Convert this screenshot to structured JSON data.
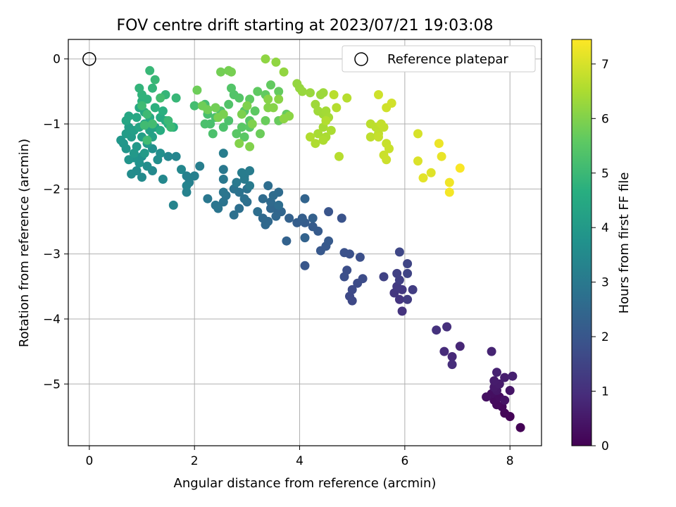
{
  "chart_data": {
    "type": "scatter",
    "title": "FOV centre drift starting at 2023/07/21 19:03:08",
    "xlabel": "Angular distance from reference (arcmin)",
    "ylabel": "Rotation from reference (arcmin)",
    "xlim": [
      -0.4,
      8.6
    ],
    "ylim": [
      -5.95,
      0.3
    ],
    "xticks": [
      0,
      2,
      4,
      6,
      8
    ],
    "yticks": [
      0,
      -1,
      -2,
      -3,
      -4,
      -5
    ],
    "xtick_labels": [
      "0",
      "2",
      "4",
      "6",
      "8"
    ],
    "ytick_labels": [
      "0",
      "−1",
      "−2",
      "−3",
      "−4",
      "−5"
    ],
    "grid": true,
    "legend": {
      "position": "top-right",
      "entries": [
        "Reference platepar"
      ]
    },
    "reference_point": {
      "x": 0,
      "y": 0
    },
    "colorbar": {
      "label": "Hours from first FF file",
      "range": [
        0,
        7.45
      ],
      "ticks": [
        0,
        1,
        2,
        3,
        4,
        5,
        6,
        7
      ],
      "tick_labels": [
        "0",
        "1",
        "2",
        "3",
        "4",
        "5",
        "6",
        "7"
      ],
      "colormap": "viridis"
    },
    "points": [
      [
        8.2,
        -5.67,
        0.02
      ],
      [
        8.0,
        -5.5,
        0.06
      ],
      [
        7.9,
        -5.45,
        0.1
      ],
      [
        7.85,
        -5.35,
        0.14
      ],
      [
        7.75,
        -5.32,
        0.18
      ],
      [
        7.7,
        -5.25,
        0.22
      ],
      [
        7.8,
        -5.2,
        0.26
      ],
      [
        7.65,
        -5.15,
        0.3
      ],
      [
        7.55,
        -5.2,
        0.34
      ],
      [
        7.9,
        -5.25,
        0.38
      ],
      [
        8.0,
        -5.1,
        0.42
      ],
      [
        7.75,
        -5.1,
        0.46
      ],
      [
        7.7,
        -5.05,
        0.5
      ],
      [
        7.8,
        -5.0,
        0.54
      ],
      [
        7.7,
        -4.95,
        0.58
      ],
      [
        7.9,
        -4.9,
        0.62
      ],
      [
        8.05,
        -4.88,
        0.66
      ],
      [
        7.75,
        -4.82,
        0.7
      ],
      [
        7.65,
        -4.5,
        0.74
      ],
      [
        7.05,
        -4.42,
        0.8
      ],
      [
        6.9,
        -4.58,
        0.85
      ],
      [
        6.75,
        -4.5,
        0.9
      ],
      [
        6.9,
        -4.7,
        0.95
      ],
      [
        6.8,
        -4.12,
        1.0
      ],
      [
        6.6,
        -4.17,
        1.05
      ],
      [
        5.95,
        -3.88,
        1.1
      ],
      [
        5.9,
        -3.7,
        1.14
      ],
      [
        5.8,
        -3.6,
        1.18
      ],
      [
        5.95,
        -3.55,
        1.22
      ],
      [
        5.85,
        -3.5,
        1.26
      ],
      [
        6.05,
        -3.7,
        1.3
      ],
      [
        6.15,
        -3.55,
        1.34
      ],
      [
        5.9,
        -3.4,
        1.38
      ],
      [
        5.85,
        -3.3,
        1.42
      ],
      [
        5.6,
        -3.35,
        1.46
      ],
      [
        6.05,
        -3.3,
        1.5
      ],
      [
        6.05,
        -3.15,
        1.54
      ],
      [
        5.9,
        -2.97,
        1.58
      ],
      [
        5.0,
        -3.72,
        1.6
      ],
      [
        4.95,
        -3.65,
        1.63
      ],
      [
        5.0,
        -3.55,
        1.66
      ],
      [
        5.1,
        -3.45,
        1.69
      ],
      [
        5.2,
        -3.38,
        1.72
      ],
      [
        4.9,
        -3.25,
        1.75
      ],
      [
        4.85,
        -3.35,
        1.78
      ],
      [
        5.15,
        -3.05,
        1.8
      ],
      [
        4.95,
        -3.0,
        1.83
      ],
      [
        4.85,
        -2.98,
        1.86
      ],
      [
        4.8,
        -2.45,
        1.9
      ],
      [
        4.55,
        -2.35,
        1.95
      ],
      [
        4.1,
        -3.18,
        2.0
      ],
      [
        4.4,
        -2.95,
        2.03
      ],
      [
        4.5,
        -2.88,
        2.06
      ],
      [
        4.55,
        -2.8,
        2.09
      ],
      [
        4.35,
        -2.65,
        2.12
      ],
      [
        4.25,
        -2.58,
        2.15
      ],
      [
        4.1,
        -2.52,
        2.18
      ],
      [
        3.95,
        -2.52,
        2.21
      ],
      [
        4.05,
        -2.45,
        2.24
      ],
      [
        4.25,
        -2.45,
        2.27
      ],
      [
        3.8,
        -2.45,
        2.3
      ],
      [
        3.75,
        -2.8,
        2.33
      ],
      [
        4.1,
        -2.75,
        2.36
      ],
      [
        4.1,
        -2.15,
        2.4
      ],
      [
        3.65,
        -2.35,
        2.42
      ],
      [
        3.55,
        -2.3,
        2.44
      ],
      [
        3.45,
        -2.3,
        2.46
      ],
      [
        3.55,
        -2.42,
        2.48
      ],
      [
        3.4,
        -2.5,
        2.5
      ],
      [
        3.35,
        -2.55,
        2.52
      ],
      [
        3.3,
        -2.45,
        2.54
      ],
      [
        3.45,
        -2.2,
        2.56
      ],
      [
        3.3,
        -2.15,
        2.58
      ],
      [
        3.6,
        -2.05,
        2.6
      ],
      [
        3.5,
        -2.1,
        2.62
      ],
      [
        3.4,
        -1.95,
        2.64
      ],
      [
        3.6,
        -2.25,
        2.66
      ],
      [
        3.2,
        -2.35,
        2.68
      ],
      [
        3.0,
        -2.2,
        2.7
      ],
      [
        2.85,
        -2.3,
        2.72
      ],
      [
        2.75,
        -2.4,
        2.74
      ],
      [
        2.95,
        -2.15,
        2.76
      ],
      [
        3.0,
        -2.0,
        2.78
      ],
      [
        2.85,
        -2.05,
        2.8
      ],
      [
        2.75,
        -2.0,
        2.82
      ],
      [
        2.6,
        -2.1,
        2.84
      ],
      [
        2.55,
        -2.2,
        2.86
      ],
      [
        2.45,
        -2.3,
        2.88
      ],
      [
        2.55,
        -2.05,
        2.9
      ],
      [
        2.4,
        -2.25,
        2.92
      ],
      [
        2.25,
        -2.15,
        2.94
      ],
      [
        2.55,
        -1.85,
        2.96
      ],
      [
        2.55,
        -1.7,
        2.98
      ],
      [
        2.8,
        -1.9,
        3.0
      ],
      [
        2.95,
        -1.8,
        3.02
      ],
      [
        3.05,
        -1.95,
        3.04
      ],
      [
        2.95,
        -1.85,
        3.06
      ],
      [
        3.05,
        -1.72,
        3.08
      ],
      [
        2.9,
        -1.75,
        3.1
      ],
      [
        2.55,
        -1.45,
        3.12
      ],
      [
        2.1,
        -1.65,
        3.15
      ],
      [
        2.0,
        -1.8,
        3.18
      ],
      [
        1.9,
        -1.9,
        3.21
      ],
      [
        1.85,
        -1.8,
        3.24
      ],
      [
        1.85,
        -2.05,
        3.27
      ],
      [
        1.85,
        -1.95,
        3.3
      ],
      [
        1.6,
        -2.25,
        3.33
      ],
      [
        1.65,
        -1.5,
        3.36
      ],
      [
        1.5,
        -1.5,
        3.4
      ],
      [
        1.75,
        -1.7,
        3.43
      ],
      [
        1.4,
        -1.85,
        3.46
      ],
      [
        1.2,
        -1.72,
        3.49
      ],
      [
        1.0,
        -1.82,
        3.52
      ],
      [
        0.9,
        -1.72,
        3.55
      ],
      [
        0.8,
        -1.77,
        3.58
      ],
      [
        1.1,
        -1.65,
        3.61
      ],
      [
        1.3,
        -1.55,
        3.64
      ],
      [
        1.35,
        -1.45,
        3.67
      ],
      [
        1.2,
        -1.38,
        3.7
      ],
      [
        1.0,
        -1.5,
        3.73
      ],
      [
        0.95,
        -1.6,
        3.76
      ],
      [
        0.85,
        -1.52,
        3.79
      ],
      [
        0.75,
        -1.55,
        3.82
      ],
      [
        0.7,
        -1.38,
        3.85
      ],
      [
        0.65,
        -1.3,
        3.88
      ],
      [
        0.6,
        -1.25,
        3.91
      ],
      [
        0.85,
        -1.45,
        3.94
      ],
      [
        0.9,
        -1.35,
        3.97
      ],
      [
        1.05,
        -1.45,
        4.0
      ],
      [
        1.1,
        -1.3,
        4.03
      ],
      [
        0.8,
        -1.2,
        4.06
      ],
      [
        0.7,
        -1.15,
        4.09
      ],
      [
        0.75,
        -1.05,
        4.12
      ],
      [
        0.85,
        -1.1,
        4.15
      ],
      [
        1.0,
        -1.2,
        4.18
      ],
      [
        1.15,
        -1.1,
        4.21
      ],
      [
        1.2,
        -1.2,
        4.24
      ],
      [
        1.25,
        -1.05,
        4.27
      ],
      [
        1.05,
        -1.0,
        4.3
      ],
      [
        0.95,
        -1.05,
        4.33
      ],
      [
        0.7,
        -0.95,
        4.36
      ],
      [
        0.75,
        -0.88,
        4.39
      ],
      [
        0.9,
        -0.9,
        4.42
      ],
      [
        0.95,
        -0.75,
        4.45
      ],
      [
        1.05,
        -0.82,
        4.48
      ],
      [
        1.15,
        -0.9,
        4.51
      ],
      [
        1.35,
        -0.9,
        4.54
      ],
      [
        1.45,
        -0.95,
        4.57
      ],
      [
        1.35,
        -1.1,
        4.6
      ],
      [
        1.5,
        -1.0,
        4.63
      ],
      [
        1.6,
        -1.05,
        4.66
      ],
      [
        1.4,
        -0.8,
        4.69
      ],
      [
        1.25,
        -0.75,
        4.72
      ],
      [
        1.0,
        -0.65,
        4.75
      ],
      [
        1.1,
        -0.62,
        4.78
      ],
      [
        1.0,
        -0.55,
        4.81
      ],
      [
        0.95,
        -0.45,
        4.84
      ],
      [
        1.2,
        -0.45,
        4.87
      ],
      [
        1.45,
        -0.55,
        4.9
      ],
      [
        1.65,
        -0.6,
        4.93
      ],
      [
        1.15,
        -0.18,
        4.95
      ],
      [
        1.25,
        -0.32,
        4.97
      ],
      [
        1.5,
        -0.95,
        5.0
      ],
      [
        1.55,
        -1.05,
        5.02
      ],
      [
        1.1,
        -0.85,
        5.04
      ],
      [
        1.0,
        -0.72,
        5.06
      ],
      [
        1.05,
        -1.02,
        5.08
      ],
      [
        1.1,
        -1.25,
        5.1
      ],
      [
        1.2,
        -1.0,
        5.12
      ],
      [
        1.35,
        -0.6,
        5.14
      ],
      [
        2.0,
        -0.72,
        5.16
      ],
      [
        2.2,
        -0.7,
        5.18
      ],
      [
        2.25,
        -0.85,
        5.2
      ],
      [
        2.4,
        -0.9,
        5.22
      ],
      [
        2.3,
        -1.0,
        5.24
      ],
      [
        2.2,
        -1.0,
        5.26
      ],
      [
        2.35,
        -1.15,
        5.28
      ],
      [
        2.55,
        -1.05,
        5.3
      ],
      [
        2.65,
        -0.95,
        5.32
      ],
      [
        2.5,
        -0.8,
        5.34
      ],
      [
        2.65,
        -0.7,
        5.36
      ],
      [
        2.75,
        -0.55,
        5.38
      ],
      [
        2.7,
        -0.45,
        5.4
      ],
      [
        2.85,
        -0.6,
        5.42
      ],
      [
        2.95,
        -0.8,
        5.44
      ],
      [
        3.05,
        -0.95,
        5.46
      ],
      [
        2.9,
        -1.05,
        5.48
      ],
      [
        2.8,
        -1.15,
        5.5
      ],
      [
        2.95,
        -1.2,
        5.52
      ],
      [
        3.05,
        -1.05,
        5.54
      ],
      [
        3.15,
        -0.8,
        5.56
      ],
      [
        3.05,
        -0.62,
        5.58
      ],
      [
        3.2,
        -0.5,
        5.6
      ],
      [
        3.35,
        -0.55,
        5.62
      ],
      [
        3.45,
        -0.4,
        5.64
      ],
      [
        3.6,
        -0.5,
        5.66
      ],
      [
        3.75,
        -0.85,
        5.68
      ],
      [
        3.6,
        -0.95,
        5.7
      ],
      [
        3.35,
        -0.95,
        5.72
      ],
      [
        3.25,
        -1.15,
        5.74
      ],
      [
        2.05,
        -0.48,
        5.76
      ],
      [
        2.15,
        -0.72,
        5.78
      ],
      [
        2.25,
        -0.78,
        5.8
      ],
      [
        2.4,
        -0.75,
        5.82
      ],
      [
        2.5,
        -0.2,
        5.84
      ],
      [
        2.65,
        -0.18,
        5.86
      ],
      [
        2.7,
        -0.2,
        5.88
      ],
      [
        2.45,
        -0.9,
        5.9
      ],
      [
        2.55,
        -0.85,
        5.92
      ],
      [
        2.9,
        -0.85,
        5.94
      ],
      [
        3.0,
        -0.72,
        5.96
      ],
      [
        3.1,
        -1.0,
        5.98
      ],
      [
        3.05,
        -1.35,
        6.0
      ],
      [
        2.85,
        -1.3,
        6.02
      ],
      [
        3.4,
        -0.75,
        6.04
      ],
      [
        3.5,
        -0.75,
        6.06
      ],
      [
        3.4,
        -0.62,
        6.08
      ],
      [
        3.6,
        -0.62,
        6.1
      ],
      [
        3.8,
        -0.88,
        6.12
      ],
      [
        3.7,
        -0.92,
        6.14
      ],
      [
        3.35,
        0.0,
        6.16
      ],
      [
        3.55,
        -0.05,
        6.18
      ],
      [
        3.7,
        -0.2,
        6.2
      ],
      [
        3.95,
        -0.38,
        6.22
      ],
      [
        4.0,
        -0.45,
        6.24
      ],
      [
        4.05,
        -0.5,
        6.26
      ],
      [
        4.2,
        -0.52,
        6.28
      ],
      [
        4.4,
        -0.55,
        6.3
      ],
      [
        4.45,
        -0.52,
        6.32
      ],
      [
        4.3,
        -0.7,
        6.34
      ],
      [
        4.35,
        -0.8,
        6.36
      ],
      [
        4.45,
        -0.85,
        6.38
      ],
      [
        4.5,
        -0.8,
        6.4
      ],
      [
        4.55,
        -0.9,
        6.42
      ],
      [
        4.45,
        -1.05,
        6.44
      ],
      [
        4.35,
        -1.15,
        6.46
      ],
      [
        4.5,
        -1.2,
        6.48
      ],
      [
        4.6,
        -1.1,
        6.5
      ],
      [
        4.45,
        -1.25,
        6.52
      ],
      [
        4.3,
        -1.3,
        6.54
      ],
      [
        4.2,
        -1.2,
        6.56
      ],
      [
        4.5,
        -0.95,
        6.58
      ],
      [
        4.7,
        -0.75,
        6.6
      ],
      [
        4.9,
        -0.6,
        6.62
      ],
      [
        4.75,
        -1.5,
        6.64
      ],
      [
        4.65,
        -0.55,
        6.66
      ],
      [
        5.35,
        -1.0,
        6.68
      ],
      [
        5.45,
        -1.05,
        6.7
      ],
      [
        5.35,
        -1.2,
        6.72
      ],
      [
        5.5,
        -1.15,
        6.74
      ],
      [
        5.6,
        -1.05,
        6.76
      ],
      [
        5.55,
        -1.0,
        6.78
      ],
      [
        5.5,
        -1.2,
        6.8
      ],
      [
        5.65,
        -1.3,
        6.82
      ],
      [
        5.7,
        -1.38,
        6.84
      ],
      [
        5.6,
        -1.48,
        6.86
      ],
      [
        5.65,
        -1.55,
        6.88
      ],
      [
        5.5,
        -0.55,
        6.9
      ],
      [
        5.65,
        -0.75,
        6.92
      ],
      [
        5.75,
        -0.68,
        6.94
      ],
      [
        6.25,
        -1.15,
        7.0
      ],
      [
        6.25,
        -1.57,
        7.05
      ],
      [
        6.5,
        -1.75,
        7.1
      ],
      [
        6.35,
        -1.83,
        7.15
      ],
      [
        6.7,
        -1.5,
        7.2
      ],
      [
        6.65,
        -1.3,
        7.25
      ],
      [
        6.85,
        -1.9,
        7.3
      ],
      [
        6.85,
        -2.05,
        7.35
      ],
      [
        7.05,
        -1.68,
        7.4
      ]
    ]
  }
}
